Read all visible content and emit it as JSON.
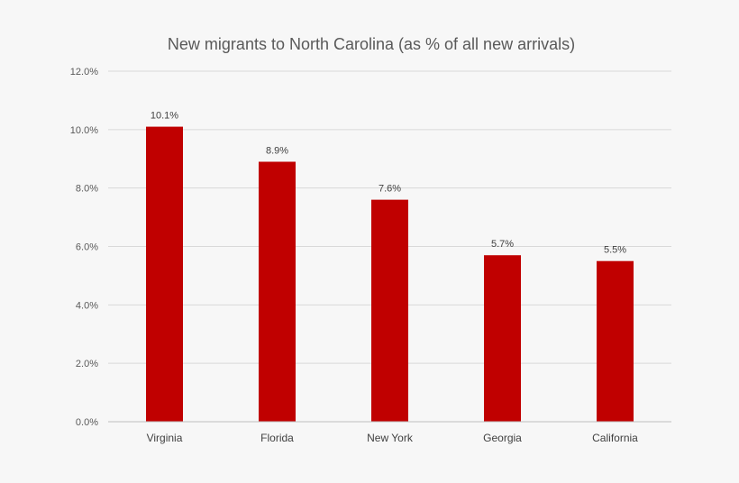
{
  "chart_data": {
    "type": "bar",
    "title": "New migrants to North Carolina (as % of all new arrivals)",
    "xlabel": "",
    "ylabel": "",
    "categories": [
      "Virginia",
      "Florida",
      "New York",
      "Georgia",
      "California"
    ],
    "values": [
      10.1,
      8.9,
      7.6,
      5.7,
      5.5
    ],
    "data_labels": [
      "10.1%",
      "8.9%",
      "7.6%",
      "5.7%",
      "5.5%"
    ],
    "ylim": [
      0,
      12
    ],
    "yticks": [
      0,
      2,
      4,
      6,
      8,
      10,
      12
    ],
    "ytick_labels": [
      "0.0%",
      "2.0%",
      "4.0%",
      "6.0%",
      "8.0%",
      "10.0%",
      "12.0%"
    ],
    "grid": true,
    "legend": "none",
    "bar_color": "#c00000",
    "background_color": "#f7f7f7"
  }
}
